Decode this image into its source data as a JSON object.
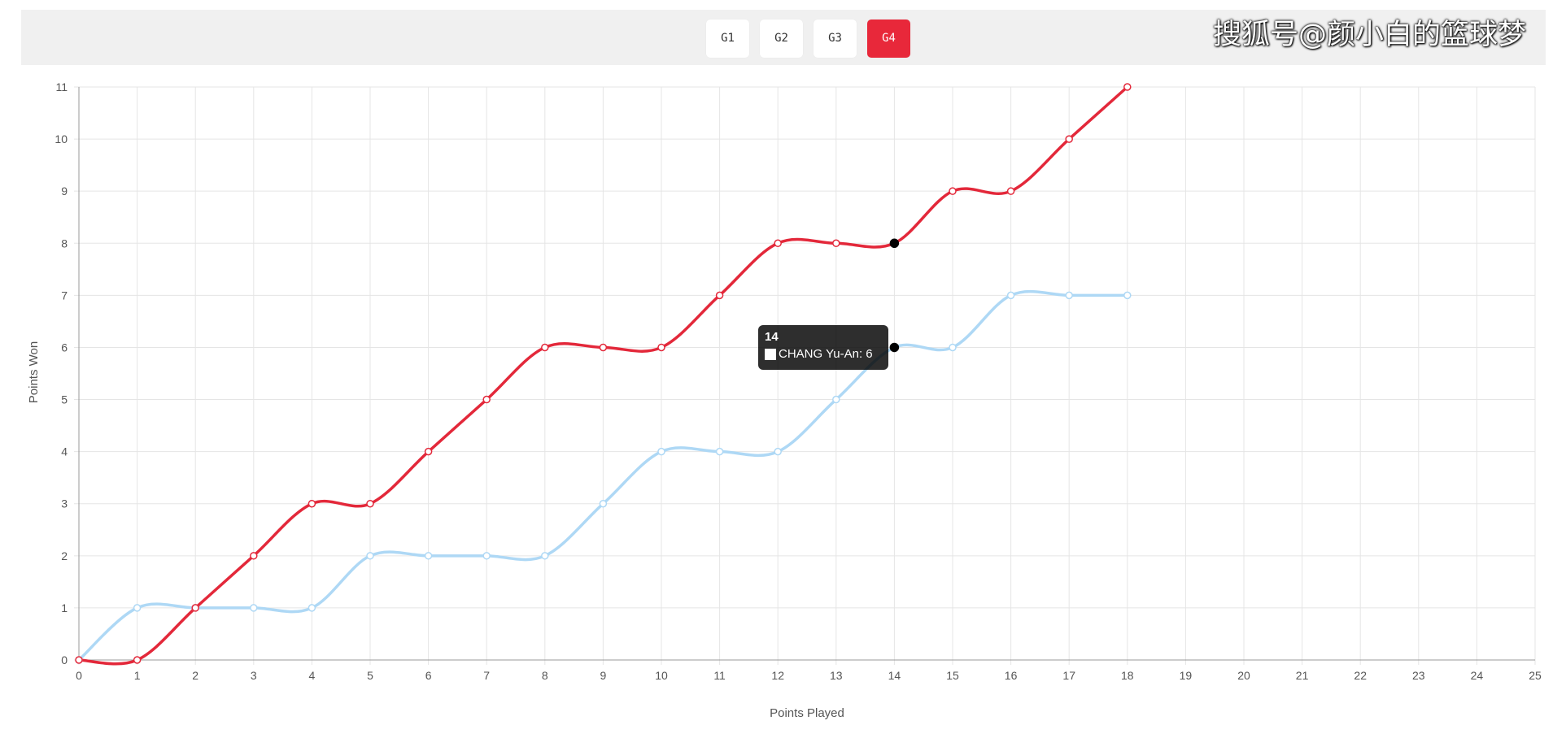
{
  "tabs": [
    {
      "label": "G1",
      "active": false
    },
    {
      "label": "G2",
      "active": false
    },
    {
      "label": "G3",
      "active": false
    },
    {
      "label": "G4",
      "active": true
    }
  ],
  "watermark": "搜狐号@颜小白的篮球梦",
  "colors": {
    "accent": "#e8283a",
    "series_red": "#e3283a",
    "series_blue": "#aed8f5",
    "grid": "#e5e5e5"
  },
  "tooltip": {
    "title": "14",
    "series_name": "CHANG Yu-An",
    "value": "6"
  },
  "chart_data": {
    "type": "line",
    "xlabel": "Points Played",
    "ylabel": "Points Won",
    "xlim": [
      0,
      25
    ],
    "ylim": [
      0,
      11
    ],
    "grid": true,
    "x": [
      0,
      1,
      2,
      3,
      4,
      5,
      6,
      7,
      8,
      9,
      10,
      11,
      12,
      13,
      14,
      15,
      16,
      17,
      18
    ],
    "series": [
      {
        "color": "#e3283a",
        "values": [
          0,
          0,
          1,
          2,
          3,
          3,
          4,
          5,
          6,
          6,
          6,
          7,
          8,
          8,
          8,
          9,
          9,
          10,
          11
        ]
      },
      {
        "name": "CHANG Yu-An",
        "color": "#aed8f5",
        "values": [
          0,
          1,
          1,
          1,
          1,
          2,
          2,
          2,
          2,
          3,
          4,
          4,
          4,
          5,
          6,
          6,
          7,
          7,
          7
        ]
      }
    ],
    "highlight_x": 14
  }
}
